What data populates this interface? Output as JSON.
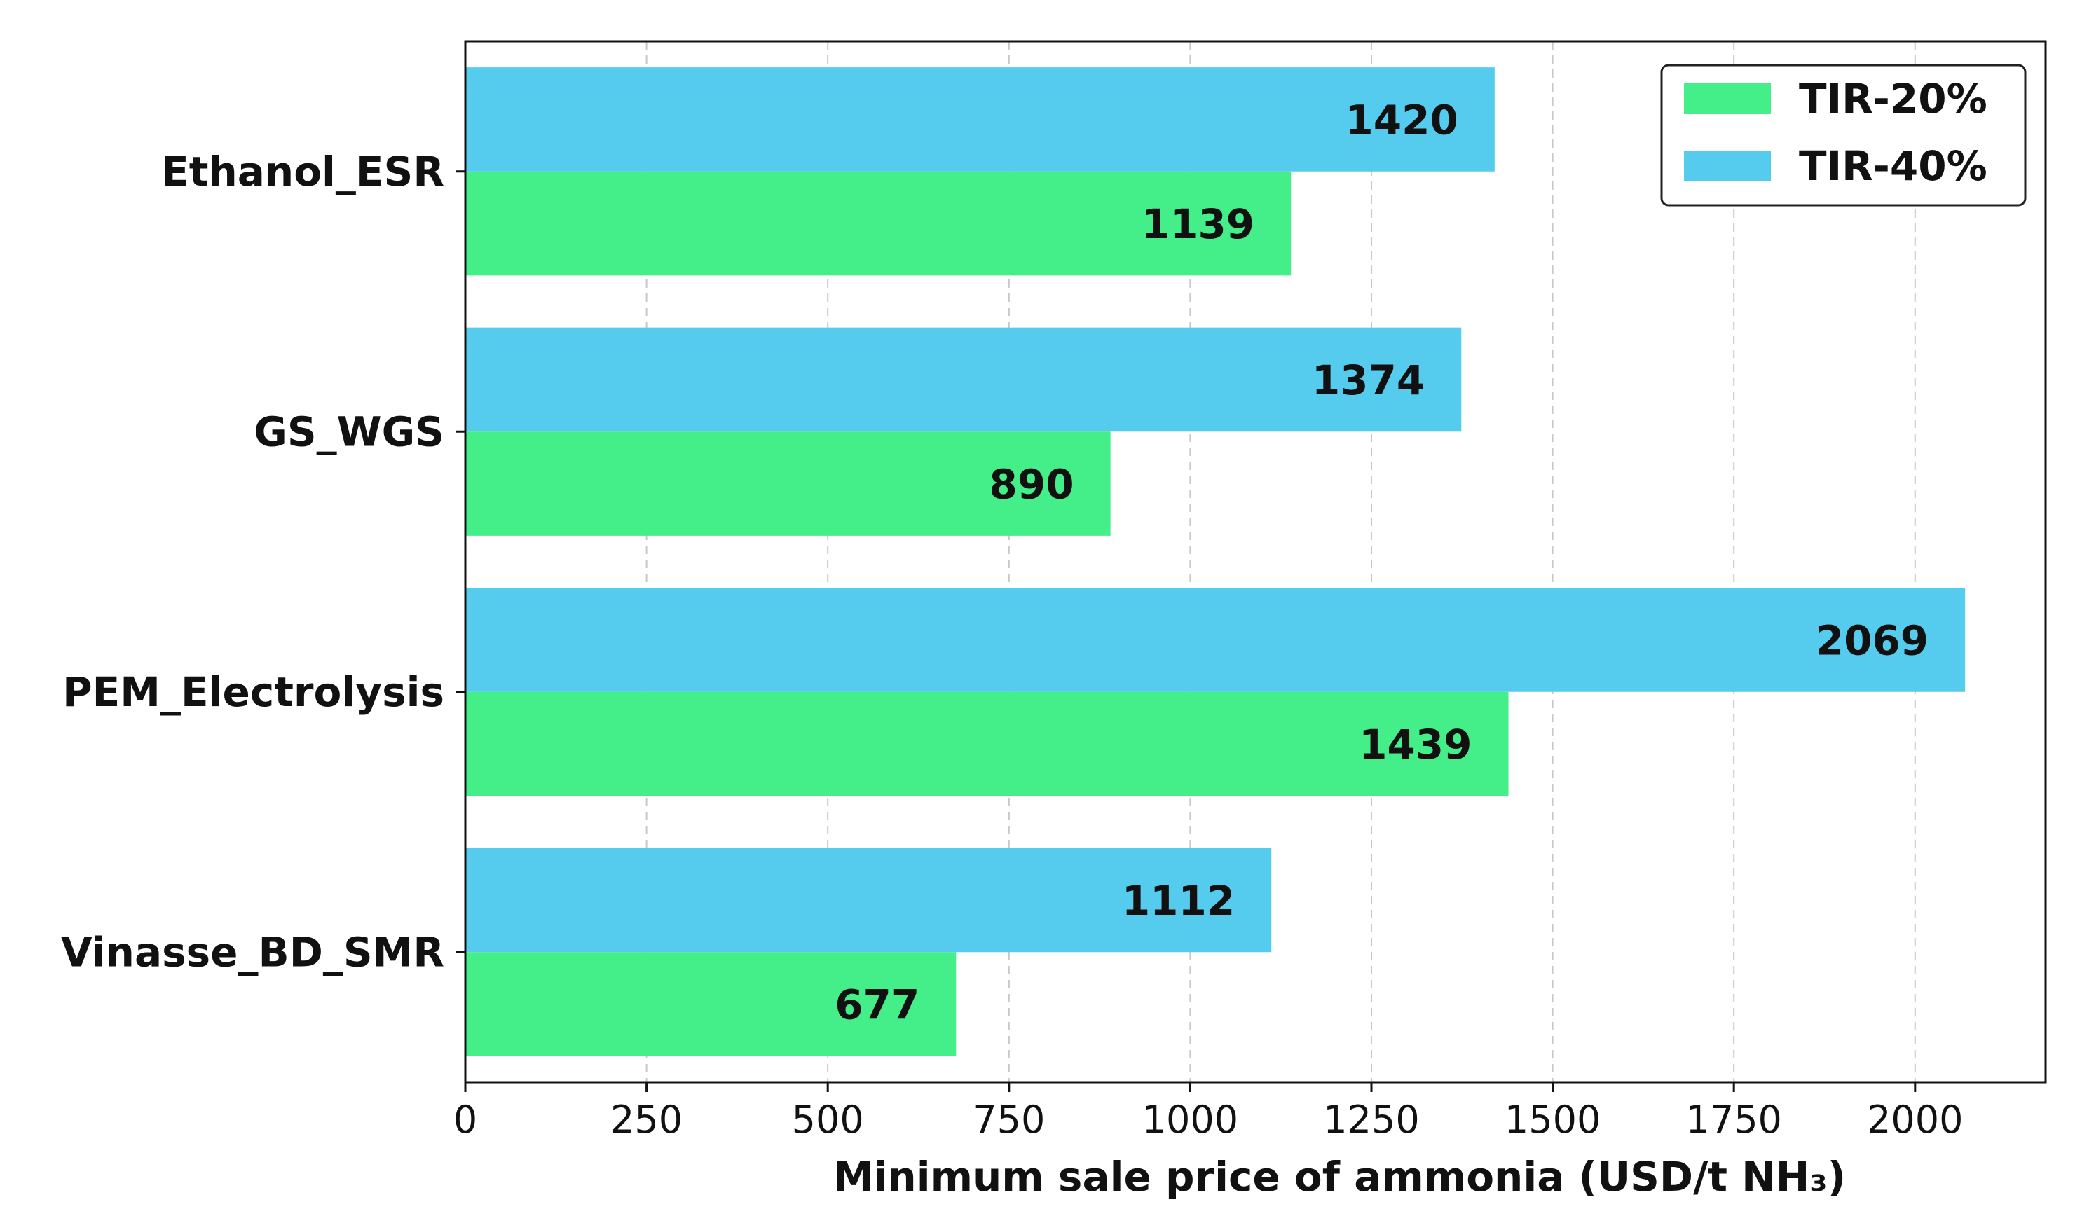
{
  "chart_data": {
    "type": "bar",
    "orientation": "horizontal",
    "categories": [
      "Ethanol_ESR",
      "GS_WGS",
      "PEM_Electrolysis",
      "Vinasse_BD_SMR"
    ],
    "series": [
      {
        "name": "TIR-20%",
        "values": [
          1139,
          890,
          1439,
          677
        ],
        "color": "#44EE88"
      },
      {
        "name": "TIR-40%",
        "values": [
          1420,
          1374,
          2069,
          1112
        ],
        "color": "#55CCEE"
      }
    ],
    "xlabel": "Minimum sale price of ammonia (USD/t NH₃)",
    "ylabel": "",
    "xlim": [
      0,
      2180
    ],
    "xticks": [
      0,
      250,
      500,
      750,
      1000,
      1250,
      1500,
      1750,
      2000
    ],
    "grid": "vertical dashed",
    "legend_position": "top-right",
    "data_labels": true
  }
}
